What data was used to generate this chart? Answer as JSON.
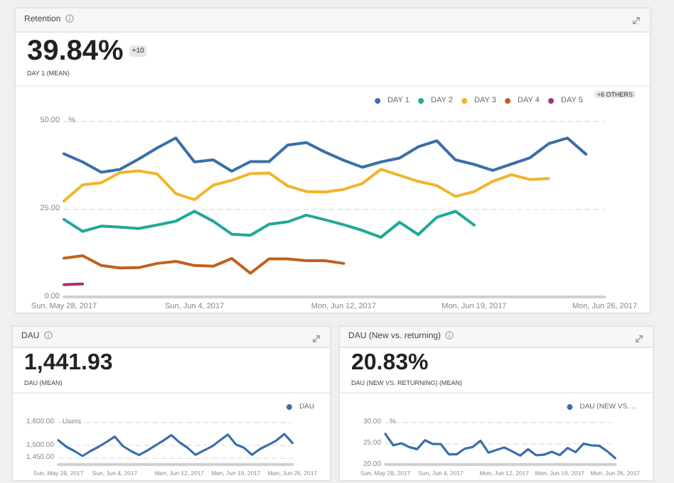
{
  "chart_data": [
    {
      "type": "line",
      "title": "Retention",
      "subtitle": "DAY 1 (MEAN)",
      "annotations": [
        "39.84%",
        "+10",
        "+6 OTHERS"
      ],
      "ylabel": "%",
      "x": [
        "2017-05-28",
        "2017-05-29",
        "2017-05-30",
        "2017-05-31",
        "2017-06-01",
        "2017-06-02",
        "2017-06-03",
        "2017-06-04",
        "2017-06-05",
        "2017-06-06",
        "2017-06-07",
        "2017-06-08",
        "2017-06-09",
        "2017-06-10",
        "2017-06-11",
        "2017-06-12",
        "2017-06-13",
        "2017-06-14",
        "2017-06-15",
        "2017-06-16",
        "2017-06-17",
        "2017-06-18",
        "2017-06-19",
        "2017-06-20",
        "2017-06-21",
        "2017-06-22",
        "2017-06-23",
        "2017-06-24",
        "2017-06-25"
      ],
      "series": [
        {
          "name": "DAY 1",
          "color": "#3a6faa",
          "values": [
            40.6,
            38.3,
            35.4,
            36.2,
            39.1,
            42.3,
            45.1,
            38.3,
            38.9,
            35.7,
            38.4,
            38.4,
            43.1,
            43.8,
            41.1,
            38.8,
            36.8,
            38.3,
            39.4,
            42.6,
            44.3,
            38.9,
            37.6,
            35.9,
            37.7,
            39.5,
            43.5,
            45.1,
            40.5
          ]
        },
        {
          "name": "DAY 2",
          "color": "#20a898",
          "values": [
            22.0,
            18.6,
            20.1,
            19.8,
            19.4,
            20.4,
            21.5,
            24.3,
            21.5,
            17.8,
            17.5,
            20.6,
            21.3,
            23.2,
            21.9,
            20.5,
            18.9,
            16.9,
            21.2,
            17.7,
            22.6,
            24.3,
            20.4,
            null,
            null,
            null,
            null,
            null,
            null
          ]
        },
        {
          "name": "DAY 3",
          "color": "#f3b32a",
          "values": [
            27.2,
            31.8,
            32.4,
            35.3,
            35.8,
            34.9,
            29.3,
            27.6,
            31.7,
            33.1,
            35.0,
            35.2,
            31.5,
            29.9,
            29.8,
            30.5,
            32.2,
            36.2,
            34.5,
            32.8,
            31.6,
            28.5,
            29.9,
            32.8,
            34.7,
            33.3,
            33.6,
            null,
            null
          ]
        },
        {
          "name": "DAY 4",
          "color": "#c2601e",
          "values": [
            11.0,
            11.7,
            8.9,
            8.2,
            8.3,
            9.5,
            10.1,
            8.9,
            8.7,
            10.9,
            6.7,
            10.8,
            10.8,
            10.3,
            10.3,
            9.5,
            null,
            null,
            null,
            null,
            null,
            null,
            null,
            null,
            null,
            null,
            null,
            null,
            null
          ]
        },
        {
          "name": "DAY 5",
          "color": "#a8307c",
          "values": [
            3.5,
            3.7,
            null,
            null,
            null,
            null,
            null,
            null,
            null,
            null,
            null,
            null,
            null,
            null,
            null,
            null,
            null,
            null,
            null,
            null,
            null,
            null,
            null,
            null,
            null,
            null,
            null,
            null,
            null
          ]
        }
      ],
      "xlim": [
        "2017-05-28",
        "2017-06-26"
      ],
      "xticks": [
        {
          "value": "2017-05-28",
          "label": "Sun, May 28, 2017"
        },
        {
          "value": "2017-06-04",
          "label": "Sun, Jun 4, 2017"
        },
        {
          "value": "2017-06-12",
          "label": "Mon, Jun 12, 2017"
        },
        {
          "value": "2017-06-19",
          "label": "Mon, Jun 19, 2017"
        },
        {
          "value": "2017-06-26",
          "label": "Mon, Jun 26, 2017"
        }
      ],
      "ylim": [
        0,
        50
      ],
      "yticks": [
        {
          "value": 0,
          "label": "0.00"
        },
        {
          "value": 25,
          "label": "25.00"
        },
        {
          "value": 50,
          "label": "50.00"
        }
      ],
      "grid": "y",
      "legend": "top right"
    },
    {
      "type": "line",
      "title": "DAU",
      "subtitle": "DAU (MEAN)",
      "annotations": [
        "1,441.93"
      ],
      "ylabel": "Users",
      "x": [
        "2017-05-28",
        "2017-05-29",
        "2017-05-30",
        "2017-05-31",
        "2017-06-01",
        "2017-06-02",
        "2017-06-03",
        "2017-06-04",
        "2017-06-05",
        "2017-06-06",
        "2017-06-07",
        "2017-06-08",
        "2017-06-09",
        "2017-06-10",
        "2017-06-11",
        "2017-06-12",
        "2017-06-13",
        "2017-06-14",
        "2017-06-15",
        "2017-06-16",
        "2017-06-17",
        "2017-06-18",
        "2017-06-19",
        "2017-06-20",
        "2017-06-21",
        "2017-06-22",
        "2017-06-23",
        "2017-06-24",
        "2017-06-25",
        "2017-06-26"
      ],
      "series": [
        {
          "name": "DAU",
          "color": "#3a6faa",
          "values": [
            1523,
            1495,
            1477,
            1456,
            1477,
            1495,
            1516,
            1538,
            1498,
            1477,
            1460,
            1479,
            1500,
            1521,
            1544,
            1514,
            1491,
            1461,
            1479,
            1496,
            1521,
            1547,
            1505,
            1491,
            1461,
            1486,
            1503,
            1521,
            1549,
            1511
          ]
        }
      ],
      "xlim": [
        "2017-05-28",
        "2017-06-26"
      ],
      "xticks": [
        {
          "value": "2017-05-28",
          "label": "Sun, May 28, 2017"
        },
        {
          "value": "2017-06-04",
          "label": "Sun, Jun 4, 2017"
        },
        {
          "value": "2017-06-12",
          "label": "Mon, Jun 12, 2017"
        },
        {
          "value": "2017-06-19",
          "label": "Mon, Jun 19, 2017"
        },
        {
          "value": "2017-06-26",
          "label": "Mon, Jun 26, 2017"
        }
      ],
      "ylim": [
        1420,
        1600
      ],
      "yticks": [
        {
          "value": 1450,
          "label": "1,450.00"
        },
        {
          "value": 1500,
          "label": "1,500.00"
        },
        {
          "value": 1600,
          "label": "1,600.00"
        }
      ],
      "grid": "y",
      "legend": "top right"
    },
    {
      "type": "line",
      "title": "DAU (New vs. returning)",
      "subtitle": "DAU (NEW VS. RETURNING) (MEAN)",
      "annotations": [
        "20.83%"
      ],
      "ylabel": "%",
      "x": [
        "2017-05-28",
        "2017-05-29",
        "2017-05-30",
        "2017-05-31",
        "2017-06-01",
        "2017-06-02",
        "2017-06-03",
        "2017-06-04",
        "2017-06-05",
        "2017-06-06",
        "2017-06-07",
        "2017-06-08",
        "2017-06-09",
        "2017-06-10",
        "2017-06-11",
        "2017-06-12",
        "2017-06-13",
        "2017-06-14",
        "2017-06-15",
        "2017-06-16",
        "2017-06-17",
        "2017-06-18",
        "2017-06-19",
        "2017-06-20",
        "2017-06-21",
        "2017-06-22",
        "2017-06-23",
        "2017-06-24",
        "2017-06-25",
        "2017-06-26"
      ],
      "series": [
        {
          "name": "DAU (NEW VS. ...",
          "color": "#3a6faa",
          "values": [
            27.2,
            24.5,
            25.0,
            24.1,
            23.6,
            25.7,
            24.8,
            24.8,
            22.4,
            22.4,
            23.7,
            24.1,
            25.6,
            22.8,
            23.4,
            24.0,
            23.1,
            22.1,
            23.6,
            22.2,
            22.3,
            23.0,
            22.2,
            23.9,
            22.9,
            24.9,
            24.5,
            24.4,
            23.1,
            21.5
          ]
        }
      ],
      "xlim": [
        "2017-05-28",
        "2017-06-26"
      ],
      "xticks": [
        {
          "value": "2017-05-28",
          "label": "Sun, May 28, 2017"
        },
        {
          "value": "2017-06-04",
          "label": "Sun, Jun 4, 2017"
        },
        {
          "value": "2017-06-12",
          "label": "Mon, Jun 12, 2017"
        },
        {
          "value": "2017-06-19",
          "label": "Mon, Jun 19, 2017"
        },
        {
          "value": "2017-06-26",
          "label": "Mon, Jun 26, 2017"
        }
      ],
      "ylim": [
        20,
        30
      ],
      "yticks": [
        {
          "value": 20,
          "label": "20.00"
        },
        {
          "value": 25,
          "label": "25.00"
        },
        {
          "value": 30,
          "label": "30.00"
        }
      ],
      "grid": "y",
      "legend": "top right"
    }
  ]
}
